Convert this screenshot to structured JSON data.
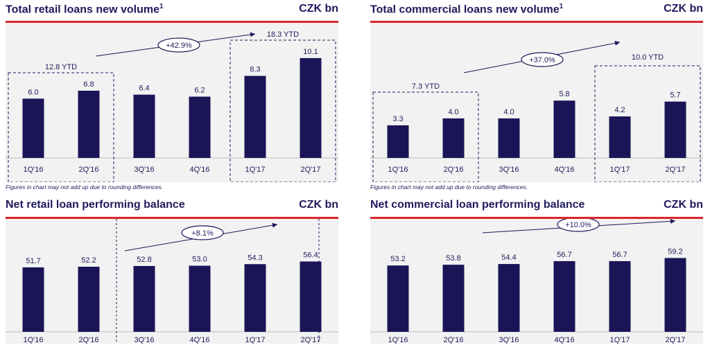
{
  "colors": {
    "bar": "#1a1557",
    "accent": "#d9252b",
    "text": "#1f1a5c",
    "background": "#f2f2f2"
  },
  "footnote": "Figures in chart may not add up due to rounding differences.",
  "chart_data": [
    {
      "type": "bar",
      "title": "Total retail loans new volume",
      "title_sup": "1",
      "unit": "CZK bn",
      "categories": [
        "1Q'16",
        "2Q'16",
        "3Q'16",
        "4Q'16",
        "1Q'17",
        "2Q'17"
      ],
      "values": [
        6.0,
        6.8,
        6.4,
        6.2,
        8.3,
        10.1
      ],
      "labels": [
        "6.0",
        "6.8",
        "6.4",
        "6.2",
        "8.3",
        "10.1"
      ],
      "ylim": [
        0,
        11
      ],
      "groups": [
        {
          "label": "12.8 YTD",
          "from": 0,
          "to": 1
        },
        {
          "label": "18.3 YTD",
          "from": 4,
          "to": 5
        }
      ],
      "growth": {
        "label": "+42.9%"
      }
    },
    {
      "type": "bar",
      "title": "Total commercial loans new volume",
      "title_sup": "1",
      "unit": "CZK bn",
      "categories": [
        "1Q'16",
        "2Q'16",
        "3Q'16",
        "4Q'16",
        "1Q'17",
        "2Q'17"
      ],
      "values": [
        3.3,
        4.0,
        4.0,
        5.8,
        4.2,
        5.7
      ],
      "labels": [
        "3.3",
        "4.0",
        "4.0",
        "5.8",
        "4.2",
        "5.7"
      ],
      "ylim": [
        0,
        11
      ],
      "groups": [
        {
          "label": "7.3 YTD",
          "from": 0,
          "to": 1
        },
        {
          "label": "10.0 YTD",
          "from": 4,
          "to": 5
        }
      ],
      "growth": {
        "label": "+37.0%"
      }
    },
    {
      "type": "bar",
      "title": "Net retail loan performing balance",
      "unit": "CZK bn",
      "categories": [
        "1Q'16",
        "2Q'16",
        "3Q'16",
        "4Q'16",
        "1Q'17",
        "2Q'17"
      ],
      "values": [
        51.7,
        52.2,
        52.8,
        53.0,
        54.3,
        56.4
      ],
      "labels": [
        "51.7",
        "52.2",
        "52.8",
        "53.0",
        "54.3",
        "56.4"
      ],
      "ylim": [
        0,
        85
      ],
      "growth": {
        "label": "+8.1%"
      }
    },
    {
      "type": "bar",
      "title": "Net commercial loan performing balance",
      "unit": "CZK bn",
      "categories": [
        "1Q'16",
        "2Q'16",
        "3Q'16",
        "4Q'16",
        "1Q'17",
        "2Q'17"
      ],
      "values": [
        53.2,
        53.8,
        54.4,
        56.7,
        56.7,
        59.2
      ],
      "labels": [
        "53.2",
        "53.8",
        "54.4",
        "56.7",
        "56.7",
        "59.2"
      ],
      "ylim": [
        0,
        85
      ],
      "growth": {
        "label": "+10.0%"
      }
    }
  ]
}
